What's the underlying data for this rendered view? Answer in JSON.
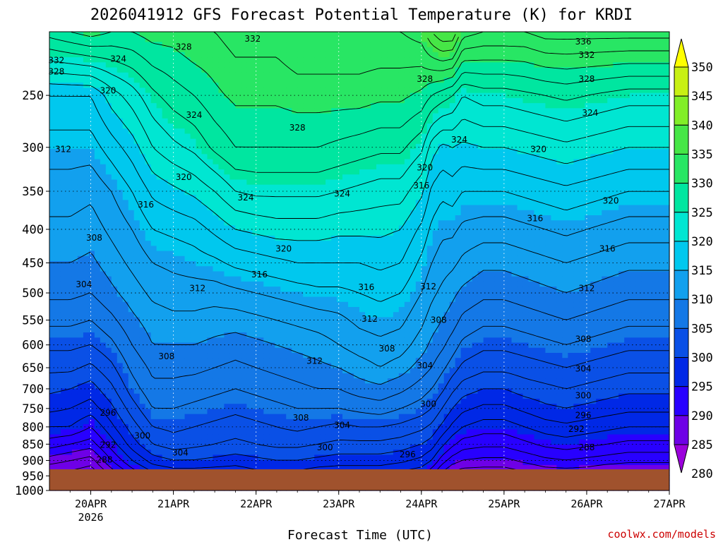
{
  "chart_data": {
    "type": "contour",
    "title": "2026041912 GFS Forecast Potential Temperature (K) for KRDI",
    "xlabel": "Forecast Time (UTC)",
    "ylabel": "",
    "credit": "coolwx.com/models",
    "x_ticks": [
      {
        "label": "20APR",
        "sub": "2026",
        "hour": 12
      },
      {
        "label": "21APR",
        "sub": "",
        "hour": 36
      },
      {
        "label": "22APR",
        "sub": "",
        "hour": 60
      },
      {
        "label": "23APR",
        "sub": "",
        "hour": 84
      },
      {
        "label": "24APR",
        "sub": "",
        "hour": 108
      },
      {
        "label": "25APR",
        "sub": "",
        "hour": 132
      },
      {
        "label": "26APR",
        "sub": "",
        "hour": 156
      },
      {
        "label": "27APR",
        "sub": "",
        "hour": 180
      }
    ],
    "xlim_hours": [
      0,
      180
    ],
    "y_ticks": [
      250,
      300,
      350,
      400,
      450,
      500,
      550,
      600,
      650,
      700,
      750,
      800,
      850,
      900,
      950,
      1000
    ],
    "ylim_hpa": [
      200,
      1000
    ],
    "y_scale": "log-pressure",
    "colorbar": {
      "ticks": [
        350,
        345,
        340,
        335,
        330,
        325,
        320,
        315,
        310,
        305,
        300,
        295,
        290,
        285,
        280
      ],
      "levels": [
        280,
        285,
        290,
        295,
        300,
        305,
        310,
        315,
        320,
        325,
        330,
        335,
        340,
        345,
        350
      ],
      "colors": [
        "#9b00dc",
        "#6e00e6",
        "#2800ff",
        "#0028e6",
        "#0a50e6",
        "#1478e6",
        "#12a0ee",
        "#00c8ee",
        "#00e6d2",
        "#00e6a0",
        "#28e664",
        "#46e646",
        "#82ee28",
        "#c8f014",
        "#ffff00"
      ]
    },
    "ground_color": "#a0522d",
    "contour_interval_K": 2,
    "surface_theta_K": 286,
    "theta_profile_times_hours": [
      0,
      6,
      12,
      18,
      24,
      30,
      36,
      42,
      48,
      54,
      60,
      66,
      72,
      78,
      84,
      90,
      96,
      102,
      108,
      111,
      114,
      117,
      120,
      126,
      132,
      138,
      144,
      150,
      156,
      162,
      168,
      174,
      180
    ],
    "theta_profiles_at": {
      "pressure_levels_hPa": [
        950,
        900,
        850,
        800,
        750,
        700,
        650,
        600,
        550,
        500,
        450,
        400,
        350,
        300,
        250,
        200
      ],
      "columns": [
        [
          285,
          289,
          293,
          296,
          298.5,
          300.5,
          302.5,
          304.5,
          306.5,
          308.5,
          310,
          311.5,
          313,
          315,
          318,
          329
        ],
        [
          285,
          288,
          292,
          296,
          298,
          300,
          302.5,
          304.5,
          306.5,
          308.5,
          310,
          311.5,
          313,
          315,
          318,
          330
        ],
        [
          284,
          287,
          291,
          294,
          297,
          299,
          301.5,
          304,
          306,
          308,
          309.5,
          311,
          312.5,
          315,
          318,
          331
        ],
        [
          288,
          292,
          295,
          297.5,
          299.5,
          301.5,
          303.5,
          305.5,
          307.5,
          309.5,
          311,
          312.5,
          314,
          317,
          321,
          330
        ],
        [
          292,
          296,
          299,
          301,
          303,
          305,
          306.5,
          308,
          309.5,
          311,
          312.5,
          314,
          316,
          319,
          323,
          330
        ],
        [
          295,
          299,
          302,
          304,
          306,
          307.5,
          308.5,
          310,
          311,
          312.5,
          314,
          316,
          318.5,
          322,
          325.5,
          331
        ],
        [
          296,
          300,
          303,
          304.5,
          306,
          307.5,
          308.5,
          310,
          311.5,
          313,
          314.5,
          316.5,
          319.5,
          323.5,
          327,
          331
        ],
        [
          296,
          300,
          302.5,
          304,
          305.5,
          307,
          308.5,
          310,
          311.5,
          313,
          315,
          317,
          320.5,
          324.5,
          328,
          332
        ],
        [
          296,
          299.5,
          302,
          303.5,
          305,
          306.5,
          308,
          309.5,
          311,
          313,
          315.5,
          318.5,
          322,
          326.5,
          329.5,
          332
        ],
        [
          296,
          299,
          301.5,
          303,
          304.5,
          306,
          307.5,
          309,
          311,
          313.5,
          316.5,
          320,
          324,
          328,
          330.5,
          333
        ],
        [
          297,
          299.5,
          302,
          303.5,
          305,
          306.5,
          308,
          309.5,
          311.5,
          314,
          317,
          320.5,
          324.5,
          328,
          330.5,
          333
        ],
        [
          297,
          300,
          302.5,
          304,
          305.5,
          307,
          308.5,
          310,
          312,
          314.5,
          317.5,
          321,
          324.5,
          328,
          330.5,
          333
        ],
        [
          297,
          300,
          302.5,
          304.5,
          306,
          307.5,
          309,
          310.5,
          312.5,
          315,
          318,
          321,
          324.5,
          328,
          331,
          334
        ],
        [
          296,
          299.5,
          302,
          304,
          306,
          308,
          309.5,
          311,
          313,
          315.5,
          318,
          321,
          324.5,
          328,
          331,
          334
        ],
        [
          296,
          299,
          301.5,
          303.5,
          306,
          308,
          310,
          312,
          313.5,
          315.5,
          318,
          320.5,
          324,
          327.5,
          331,
          334
        ],
        [
          296,
          299,
          301.5,
          304,
          306.5,
          309,
          311,
          313,
          314.5,
          316,
          318,
          320.5,
          323.5,
          327,
          331,
          334
        ],
        [
          296,
          299,
          301.5,
          304,
          307,
          309.5,
          312,
          313.5,
          315,
          316.5,
          318.5,
          320.5,
          323,
          326.5,
          330.5,
          334
        ],
        [
          295,
          298.5,
          301,
          303.5,
          306,
          308.5,
          311,
          313,
          314.5,
          316,
          318,
          320,
          323,
          326.5,
          330.5,
          334
        ],
        [
          294,
          297.5,
          300,
          302.5,
          305,
          307,
          309,
          311,
          312.5,
          314,
          315.5,
          317.5,
          320.5,
          324.5,
          329.5,
          335
        ],
        [
          292,
          296,
          299,
          301.5,
          304,
          306,
          308,
          309.5,
          311,
          312.5,
          314,
          315.5,
          317.5,
          321,
          328,
          338
        ],
        [
          289,
          293,
          296.5,
          299.5,
          302,
          304.5,
          306.5,
          308.5,
          310,
          311.5,
          313,
          314.5,
          316.5,
          319.5,
          327,
          340
        ],
        [
          287,
          291,
          294.5,
          297.5,
          300,
          302.5,
          305,
          307,
          309,
          310.5,
          312.5,
          314.5,
          317,
          320,
          326,
          340
        ],
        [
          286,
          290,
          293,
          296,
          298.5,
          301,
          303.5,
          305.5,
          307.5,
          309.5,
          311.5,
          313.5,
          316,
          319.5,
          324,
          335
        ],
        [
          286,
          289.5,
          292.5,
          295,
          297.5,
          300,
          302.5,
          304.5,
          306.5,
          308.5,
          310.5,
          313,
          316,
          320,
          325,
          334
        ],
        [
          286,
          289.5,
          292.5,
          295,
          297.5,
          300,
          302.5,
          304.5,
          306.5,
          308.5,
          310.5,
          313,
          316,
          320,
          325,
          334
        ],
        [
          287,
          290.5,
          293.5,
          296,
          298.5,
          301,
          303,
          305,
          307,
          309,
          311,
          313.5,
          316.5,
          320.5,
          325.5,
          334
        ],
        [
          288,
          291.5,
          294.5,
          297,
          299.5,
          301.5,
          303.5,
          305.5,
          307.5,
          309.5,
          311.5,
          314,
          317,
          321,
          326,
          335
        ],
        [
          288,
          292,
          295,
          297.5,
          300,
          302,
          304,
          306,
          308,
          310,
          312,
          314.5,
          317.5,
          321.5,
          326.5,
          335
        ],
        [
          288,
          291.5,
          294.5,
          297,
          299.5,
          301.5,
          303.5,
          305.5,
          307.5,
          309.5,
          311.5,
          314,
          317,
          321,
          326,
          335
        ],
        [
          287,
          291,
          294,
          296.5,
          299,
          301,
          303,
          305,
          307,
          309,
          311,
          313.5,
          316.5,
          320.5,
          325.5,
          335
        ],
        [
          287,
          290.5,
          293.5,
          296,
          298.5,
          300.5,
          302.5,
          304.5,
          306.5,
          308.5,
          310.5,
          313,
          316,
          320,
          325,
          335
        ],
        [
          287,
          290.5,
          293.5,
          296,
          298.5,
          300.5,
          302.5,
          304.5,
          306.5,
          308.5,
          310.5,
          313,
          316,
          320,
          325,
          335
        ],
        [
          287,
          290.5,
          293.5,
          296,
          298.5,
          300.5,
          302.5,
          304.5,
          306.5,
          308.5,
          310.5,
          313,
          316,
          320,
          325,
          335
        ]
      ]
    },
    "contour_labels": [
      {
        "text": "332",
        "hour": 2,
        "hPa": 221
      },
      {
        "text": "328",
        "hour": 2,
        "hPa": 230
      },
      {
        "text": "324",
        "hour": 20,
        "hPa": 220
      },
      {
        "text": "320",
        "hour": 17,
        "hPa": 246
      },
      {
        "text": "312",
        "hour": 4,
        "hPa": 302
      },
      {
        "text": "308",
        "hour": 13,
        "hPa": 412
      },
      {
        "text": "304",
        "hour": 10,
        "hPa": 485
      },
      {
        "text": "296",
        "hour": 17,
        "hPa": 762
      },
      {
        "text": "292",
        "hour": 17,
        "hPa": 852
      },
      {
        "text": "288",
        "hour": 16,
        "hPa": 898
      },
      {
        "text": "328",
        "hour": 39,
        "hPa": 211
      },
      {
        "text": "332",
        "hour": 59,
        "hPa": 205
      },
      {
        "text": "324",
        "hour": 42,
        "hPa": 268
      },
      {
        "text": "320",
        "hour": 39,
        "hPa": 333
      },
      {
        "text": "316",
        "hour": 28,
        "hPa": 367
      },
      {
        "text": "312",
        "hour": 43,
        "hPa": 492
      },
      {
        "text": "308",
        "hour": 34,
        "hPa": 625
      },
      {
        "text": "300",
        "hour": 27,
        "hPa": 825
      },
      {
        "text": "304",
        "hour": 38,
        "hPa": 876
      },
      {
        "text": "324",
        "hour": 57,
        "hPa": 358
      },
      {
        "text": "320",
        "hour": 68,
        "hPa": 428
      },
      {
        "text": "316",
        "hour": 61,
        "hPa": 469
      },
      {
        "text": "328",
        "hour": 72,
        "hPa": 280
      },
      {
        "text": "324",
        "hour": 85,
        "hPa": 353
      },
      {
        "text": "316",
        "hour": 92,
        "hPa": 490
      },
      {
        "text": "312",
        "hour": 77,
        "hPa": 635
      },
      {
        "text": "308",
        "hour": 73,
        "hPa": 775
      },
      {
        "text": "304",
        "hour": 85,
        "hPa": 795
      },
      {
        "text": "300",
        "hour": 80,
        "hPa": 860
      },
      {
        "text": "312",
        "hour": 93,
        "hPa": 548
      },
      {
        "text": "308",
        "hour": 98,
        "hPa": 608
      },
      {
        "text": "296",
        "hour": 104,
        "hPa": 881
      },
      {
        "text": "320",
        "hour": 109,
        "hPa": 322
      },
      {
        "text": "316",
        "hour": 108,
        "hPa": 343
      },
      {
        "text": "312",
        "hour": 110,
        "hPa": 489
      },
      {
        "text": "308",
        "hour": 113,
        "hPa": 550
      },
      {
        "text": "304",
        "hour": 109,
        "hPa": 645
      },
      {
        "text": "300",
        "hour": 110,
        "hPa": 738
      },
      {
        "text": "328",
        "hour": 109,
        "hPa": 236
      },
      {
        "text": "324",
        "hour": 119,
        "hPa": 292
      },
      {
        "text": "336",
        "hour": 155,
        "hPa": 207
      },
      {
        "text": "332",
        "hour": 156,
        "hPa": 217
      },
      {
        "text": "328",
        "hour": 156,
        "hPa": 236
      },
      {
        "text": "324",
        "hour": 157,
        "hPa": 266
      },
      {
        "text": "320",
        "hour": 142,
        "hPa": 302
      },
      {
        "text": "316",
        "hour": 141,
        "hPa": 385
      },
      {
        "text": "320",
        "hour": 163,
        "hPa": 362
      },
      {
        "text": "316",
        "hour": 162,
        "hPa": 428
      },
      {
        "text": "312",
        "hour": 156,
        "hPa": 492
      },
      {
        "text": "308",
        "hour": 155,
        "hPa": 588
      },
      {
        "text": "304",
        "hour": 155,
        "hPa": 652
      },
      {
        "text": "300",
        "hour": 155,
        "hPa": 717
      },
      {
        "text": "296",
        "hour": 155,
        "hPa": 768
      },
      {
        "text": "292",
        "hour": 153,
        "hPa": 806
      },
      {
        "text": "288",
        "hour": 156,
        "hPa": 860
      }
    ]
  }
}
